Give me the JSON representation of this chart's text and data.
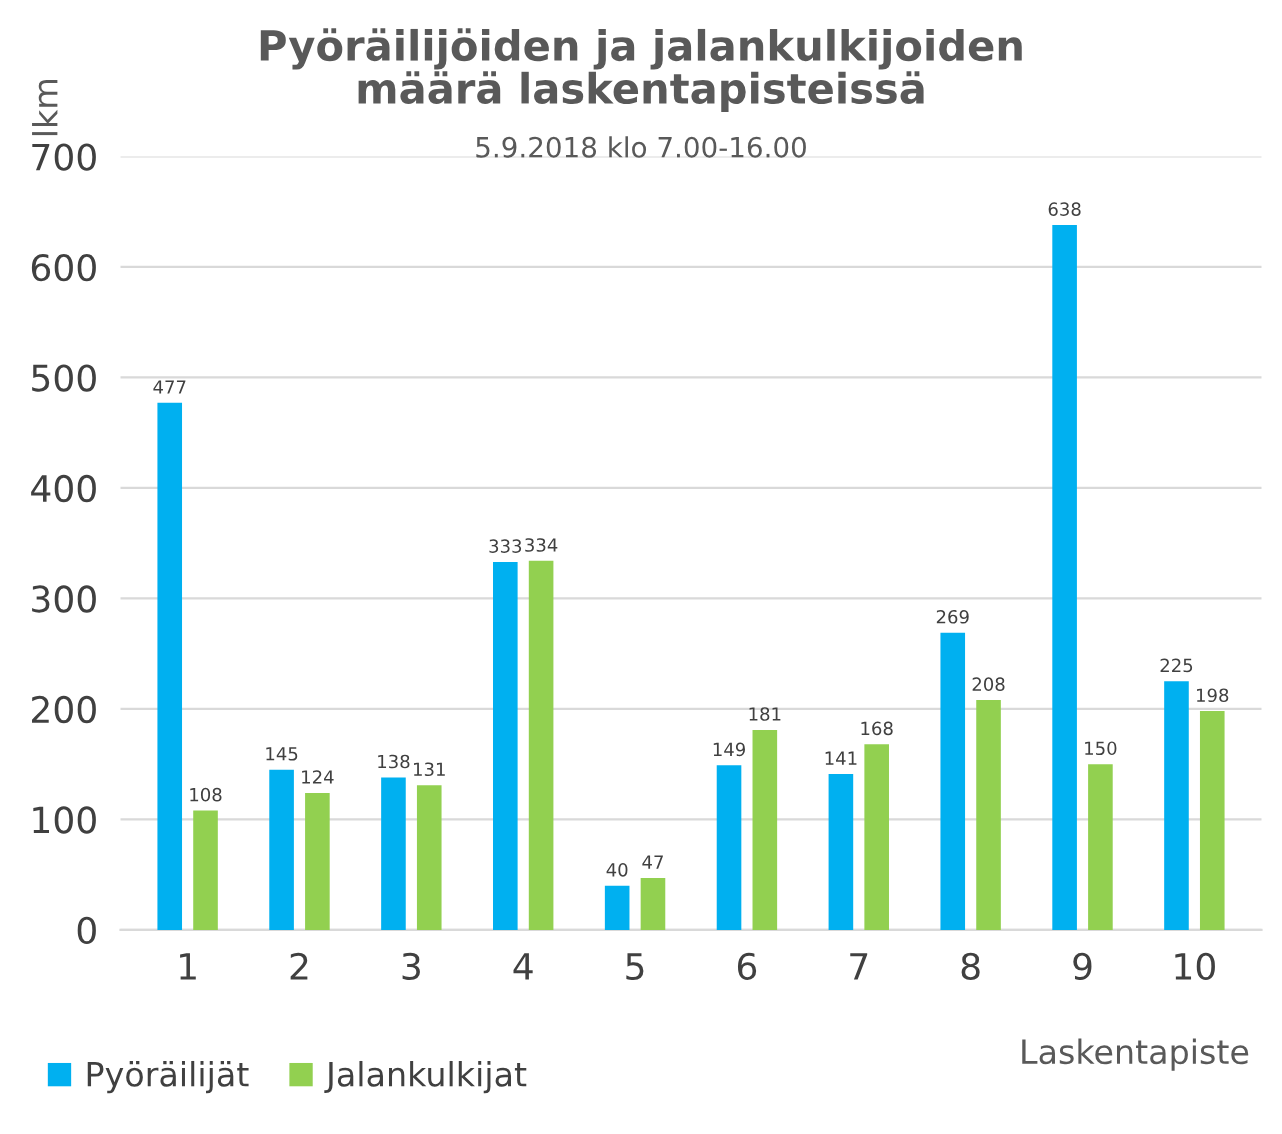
{
  "chart_data": {
    "type": "bar",
    "title": "Pyöräilijöiden ja jalankulkijoiden\nmäärä laskentapisteissä",
    "subtitle": "5.9.2018 klo 7.00-16.00",
    "xlabel": "Laskentapiste",
    "ylabel": "lkm",
    "categories": [
      "1",
      "2",
      "3",
      "4",
      "5",
      "6",
      "7",
      "8",
      "9",
      "10"
    ],
    "series": [
      {
        "name": "Pyöräilijät",
        "color": "#00b0f0",
        "values": [
          477,
          145,
          138,
          333,
          40,
          149,
          141,
          269,
          638,
          225
        ]
      },
      {
        "name": "Jalankulkijat",
        "color": "#92d050",
        "values": [
          108,
          124,
          131,
          334,
          47,
          181,
          168,
          208,
          150,
          198
        ]
      }
    ],
    "ylim": [
      0,
      700
    ],
    "yticks": [
      0,
      100,
      200,
      300,
      400,
      500,
      600,
      700
    ],
    "grid": "y",
    "legend": "bottom left",
    "data_labels": true
  }
}
